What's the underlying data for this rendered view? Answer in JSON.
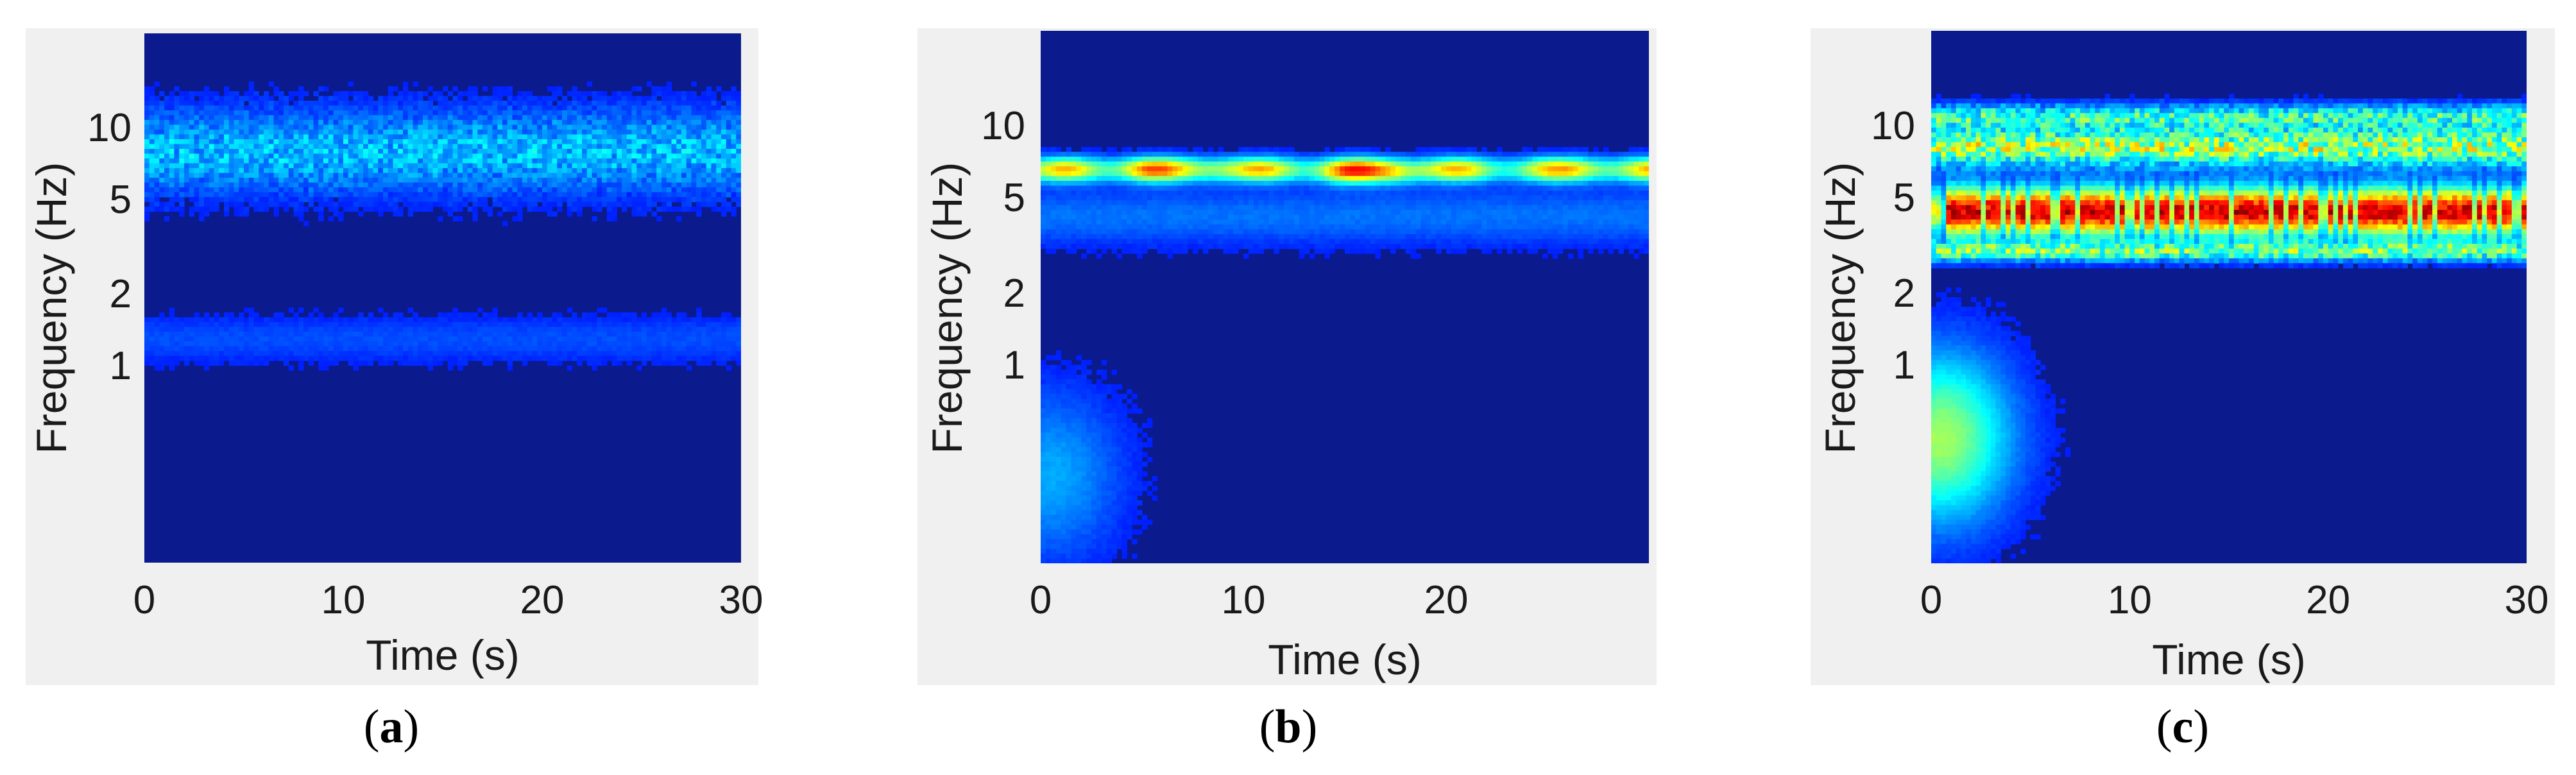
{
  "colors": {
    "background": "#0b1a8c",
    "panel": "#f0f0f0",
    "text": "#1a1a1a",
    "colormap": "jet"
  },
  "chart_data": [
    {
      "type": "heatmap",
      "panel": "a",
      "caption_letter": "a",
      "xlabel": "Time (s)",
      "ylabel": "Frequency (Hz)",
      "xlim": [
        0,
        30
      ],
      "ylim": [
        0.15,
        25
      ],
      "yscale": "log",
      "xticks": [
        0,
        10,
        20,
        30
      ],
      "xtick_labels": [
        "0",
        "10",
        "20",
        "30"
      ],
      "yticks": [
        10,
        5,
        2,
        1
      ],
      "ytick_labels": [
        "10",
        "5",
        "2",
        "1"
      ],
      "grid": false,
      "bands": [
        {
          "f_center": 8.0,
          "f_halfwidth_decades": 0.18,
          "intensity": 0.2,
          "pattern": "speckle"
        },
        {
          "f_center": 1.3,
          "f_halfwidth_decades": 0.1,
          "intensity": 0.08,
          "pattern": "smooth"
        }
      ]
    },
    {
      "type": "heatmap",
      "panel": "b",
      "caption_letter": "b",
      "xlabel": "Time (s)",
      "ylabel": "Frequency (Hz)",
      "xlim": [
        0,
        30
      ],
      "ylim": [
        0.15,
        25
      ],
      "yscale": "log",
      "xticks": [
        0,
        10,
        20
      ],
      "xtick_labels": [
        "0",
        "10",
        "20"
      ],
      "yticks": [
        10,
        5,
        2,
        1
      ],
      "ytick_labels": [
        "10",
        "5",
        "2",
        "1"
      ],
      "grid": false,
      "bands": [
        {
          "f_center": 6.6,
          "f_halfwidth_decades": 0.05,
          "intensity": 0.55,
          "pattern": "steady"
        },
        {
          "f_center": 4.2,
          "f_halfwidth_decades": 0.12,
          "intensity": 0.12,
          "pattern": "smooth"
        }
      ],
      "hotspots": [
        {
          "t": 5.0,
          "f": 6.6,
          "intensity": 0.68
        },
        {
          "t": 8.5,
          "f": 6.6,
          "intensity": 0.62
        },
        {
          "t": 15.0,
          "f": 6.4,
          "intensity": 0.72
        },
        {
          "t": 17.5,
          "f": 6.4,
          "intensity": 0.72
        },
        {
          "t": 27.0,
          "f": 6.6,
          "intensity": 0.6
        }
      ],
      "glow": {
        "t": 0.5,
        "f": 0.35,
        "intensity": 0.18
      }
    },
    {
      "type": "heatmap",
      "panel": "c",
      "caption_letter": "c",
      "xlabel": "Time (s)",
      "ylabel": "Frequency (Hz)",
      "xlim": [
        0,
        30
      ],
      "ylim": [
        0.15,
        25
      ],
      "yscale": "log",
      "xticks": [
        0,
        10,
        20,
        30
      ],
      "xtick_labels": [
        "0",
        "10",
        "20",
        "30"
      ],
      "yticks": [
        10,
        5,
        2,
        1
      ],
      "ytick_labels": [
        "10",
        "5",
        "2",
        "1"
      ],
      "grid": false,
      "bands": [
        {
          "f_center": 4.4,
          "f_halfwidth_decades": 0.1,
          "intensity": 0.92,
          "pattern": "blocky"
        },
        {
          "f_center": 8.2,
          "f_halfwidth_decades": 0.08,
          "intensity": 0.45,
          "pattern": "speckle"
        },
        {
          "f_center": 3.0,
          "f_halfwidth_decades": 0.04,
          "intensity": 0.35,
          "pattern": "speckle"
        },
        {
          "f_center": 11.0,
          "f_halfwidth_decades": 0.05,
          "intensity": 0.3,
          "pattern": "speckle"
        }
      ],
      "glow": {
        "t": 0.5,
        "f": 0.5,
        "intensity": 0.45
      }
    }
  ]
}
